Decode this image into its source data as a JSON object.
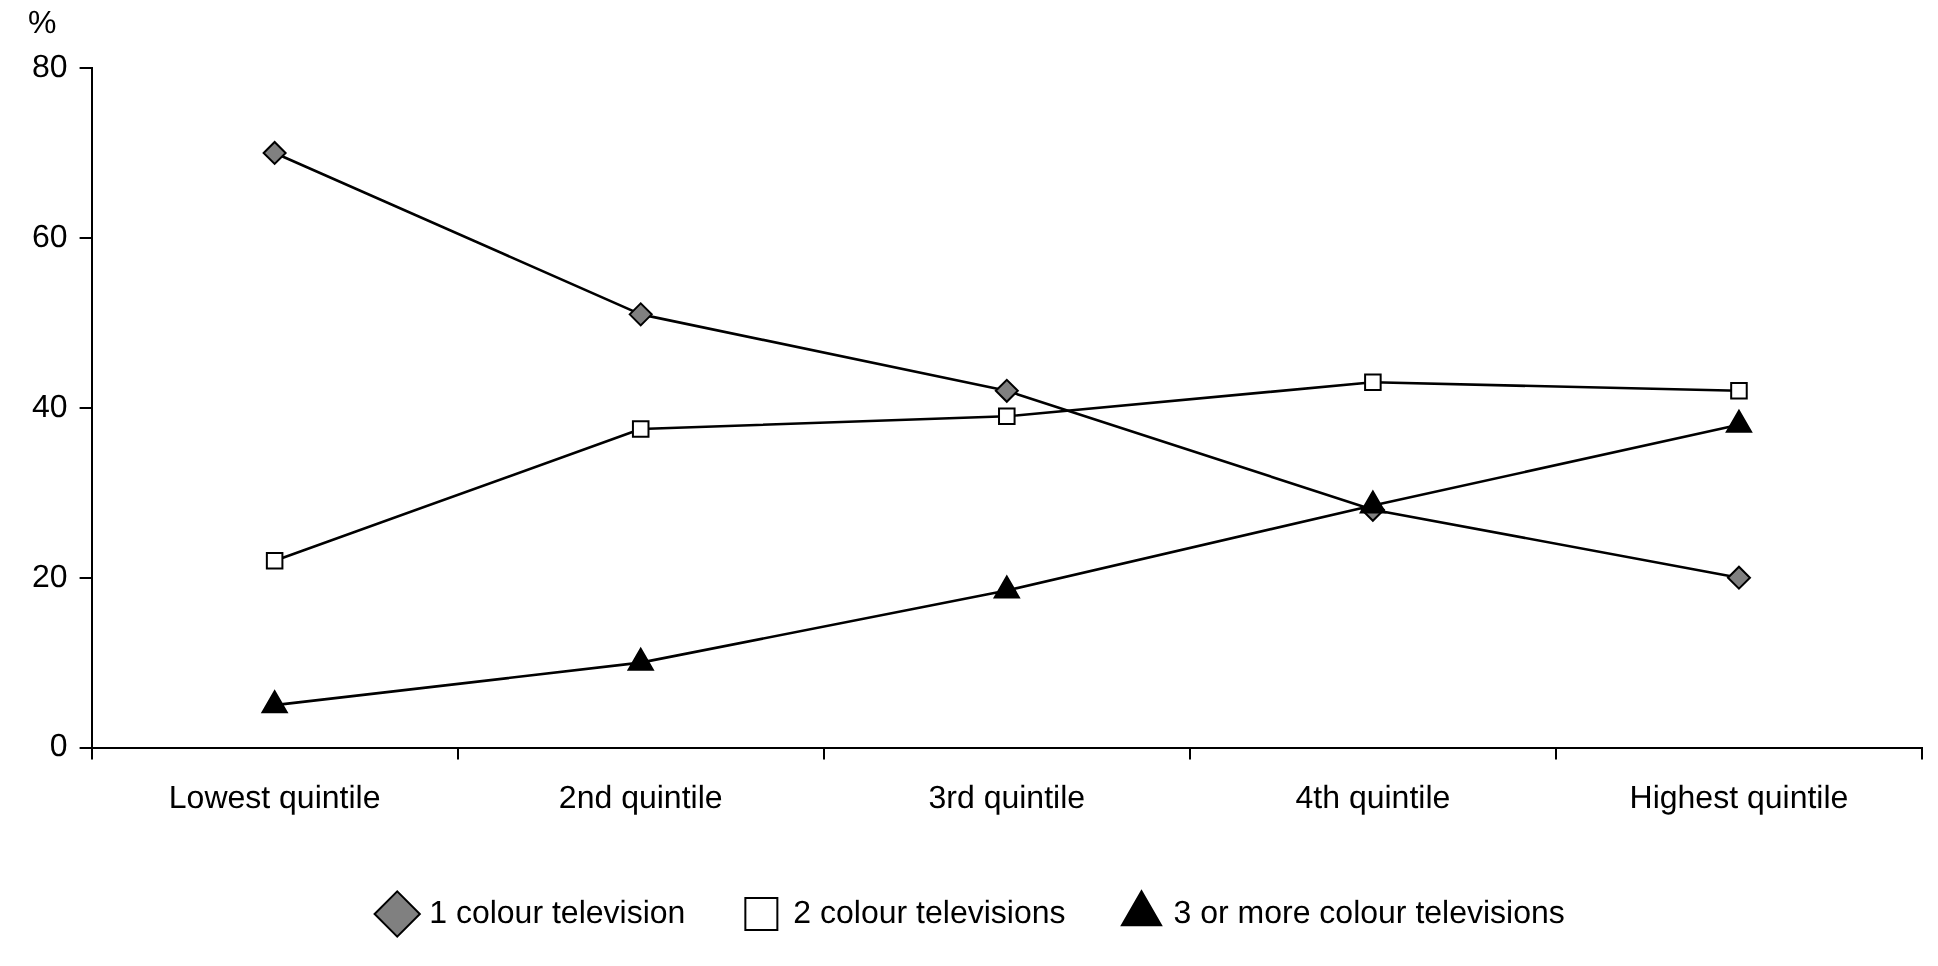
{
  "chart_data": {
    "type": "line",
    "ylabel": "%",
    "categories": [
      "Lowest quintile",
      "2nd quintile",
      "3rd quintile",
      "4th quintile",
      "Highest quintile"
    ],
    "series": [
      {
        "name": "1 colour television",
        "color": "#000000",
        "marker": "diamond",
        "values": [
          70,
          51,
          42,
          28,
          20
        ]
      },
      {
        "name": "2 colour televisions",
        "color": "#000000",
        "marker": "square",
        "values": [
          22,
          37.5,
          39,
          43,
          42
        ]
      },
      {
        "name": "3 or more colour televisions",
        "color": "#000000",
        "marker": "triangle",
        "values": [
          5,
          10,
          18.5,
          28.5,
          38
        ]
      }
    ],
    "ylim": [
      0,
      80
    ],
    "yticks": [
      0,
      20,
      40,
      60,
      80
    ],
    "grid": false,
    "legend": "bottom",
    "line_style": "solid"
  }
}
